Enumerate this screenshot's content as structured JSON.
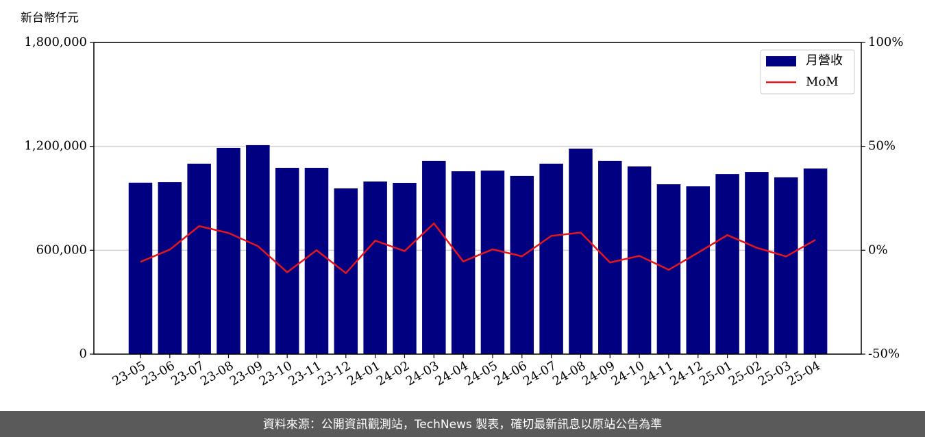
{
  "chart_data": {
    "type": "bar",
    "y_label": "新台幣仟元",
    "categories": [
      "23-05",
      "23-06",
      "23-07",
      "23-08",
      "23-09",
      "23-10",
      "23-11",
      "23-12",
      "24-01",
      "24-02",
      "24-03",
      "24-04",
      "24-05",
      "24-06",
      "24-07",
      "24-08",
      "24-09",
      "24-10",
      "24-11",
      "24-12",
      "25-01",
      "25-02",
      "25-03",
      "25-04"
    ],
    "series": [
      {
        "name": "月營收",
        "type": "bar",
        "color": "#000080",
        "values": [
          990000,
          993000,
          1100000,
          1191000,
          1207000,
          1076000,
          1076000,
          957000,
          997000,
          989000,
          1116000,
          1056000,
          1060000,
          1029000,
          1100000,
          1187000,
          1116000,
          1084000,
          981000,
          969000,
          1040000,
          1052000,
          1021000,
          1072000
        ]
      },
      {
        "name": "MoM",
        "type": "line",
        "axis": "y2",
        "color": "#e8141c",
        "values": [
          -5.6,
          0.3,
          11.6,
          8.3,
          2.0,
          -10.6,
          0.0,
          -11.0,
          4.6,
          -0.4,
          12.9,
          -5.4,
          0.4,
          -2.9,
          6.9,
          8.5,
          -5.9,
          -2.7,
          -9.4,
          -1.2,
          7.3,
          1.2,
          -3.0,
          5.0
        ]
      }
    ],
    "ylim": [
      0,
      1800000
    ],
    "yticks": [
      0,
      {
        "value": 600000,
        "label": "600,000"
      },
      {
        "value": 1200000,
        "label": "1,200,000"
      },
      {
        "value": 1800000,
        "label": "1,800,000"
      }
    ],
    "y2lim": [
      -50,
      100
    ],
    "y2ticks": [
      {
        "value": -50,
        "label": "-50%"
      },
      {
        "value": 0,
        "label": "0%"
      },
      {
        "value": 50,
        "label": "50%"
      },
      {
        "value": 100,
        "label": "100%"
      }
    ],
    "grid": true,
    "legend": "upper right"
  },
  "footer": "資料來源：公開資訊觀測站，TechNews 製表，確切最新訊息以原站公告為準"
}
